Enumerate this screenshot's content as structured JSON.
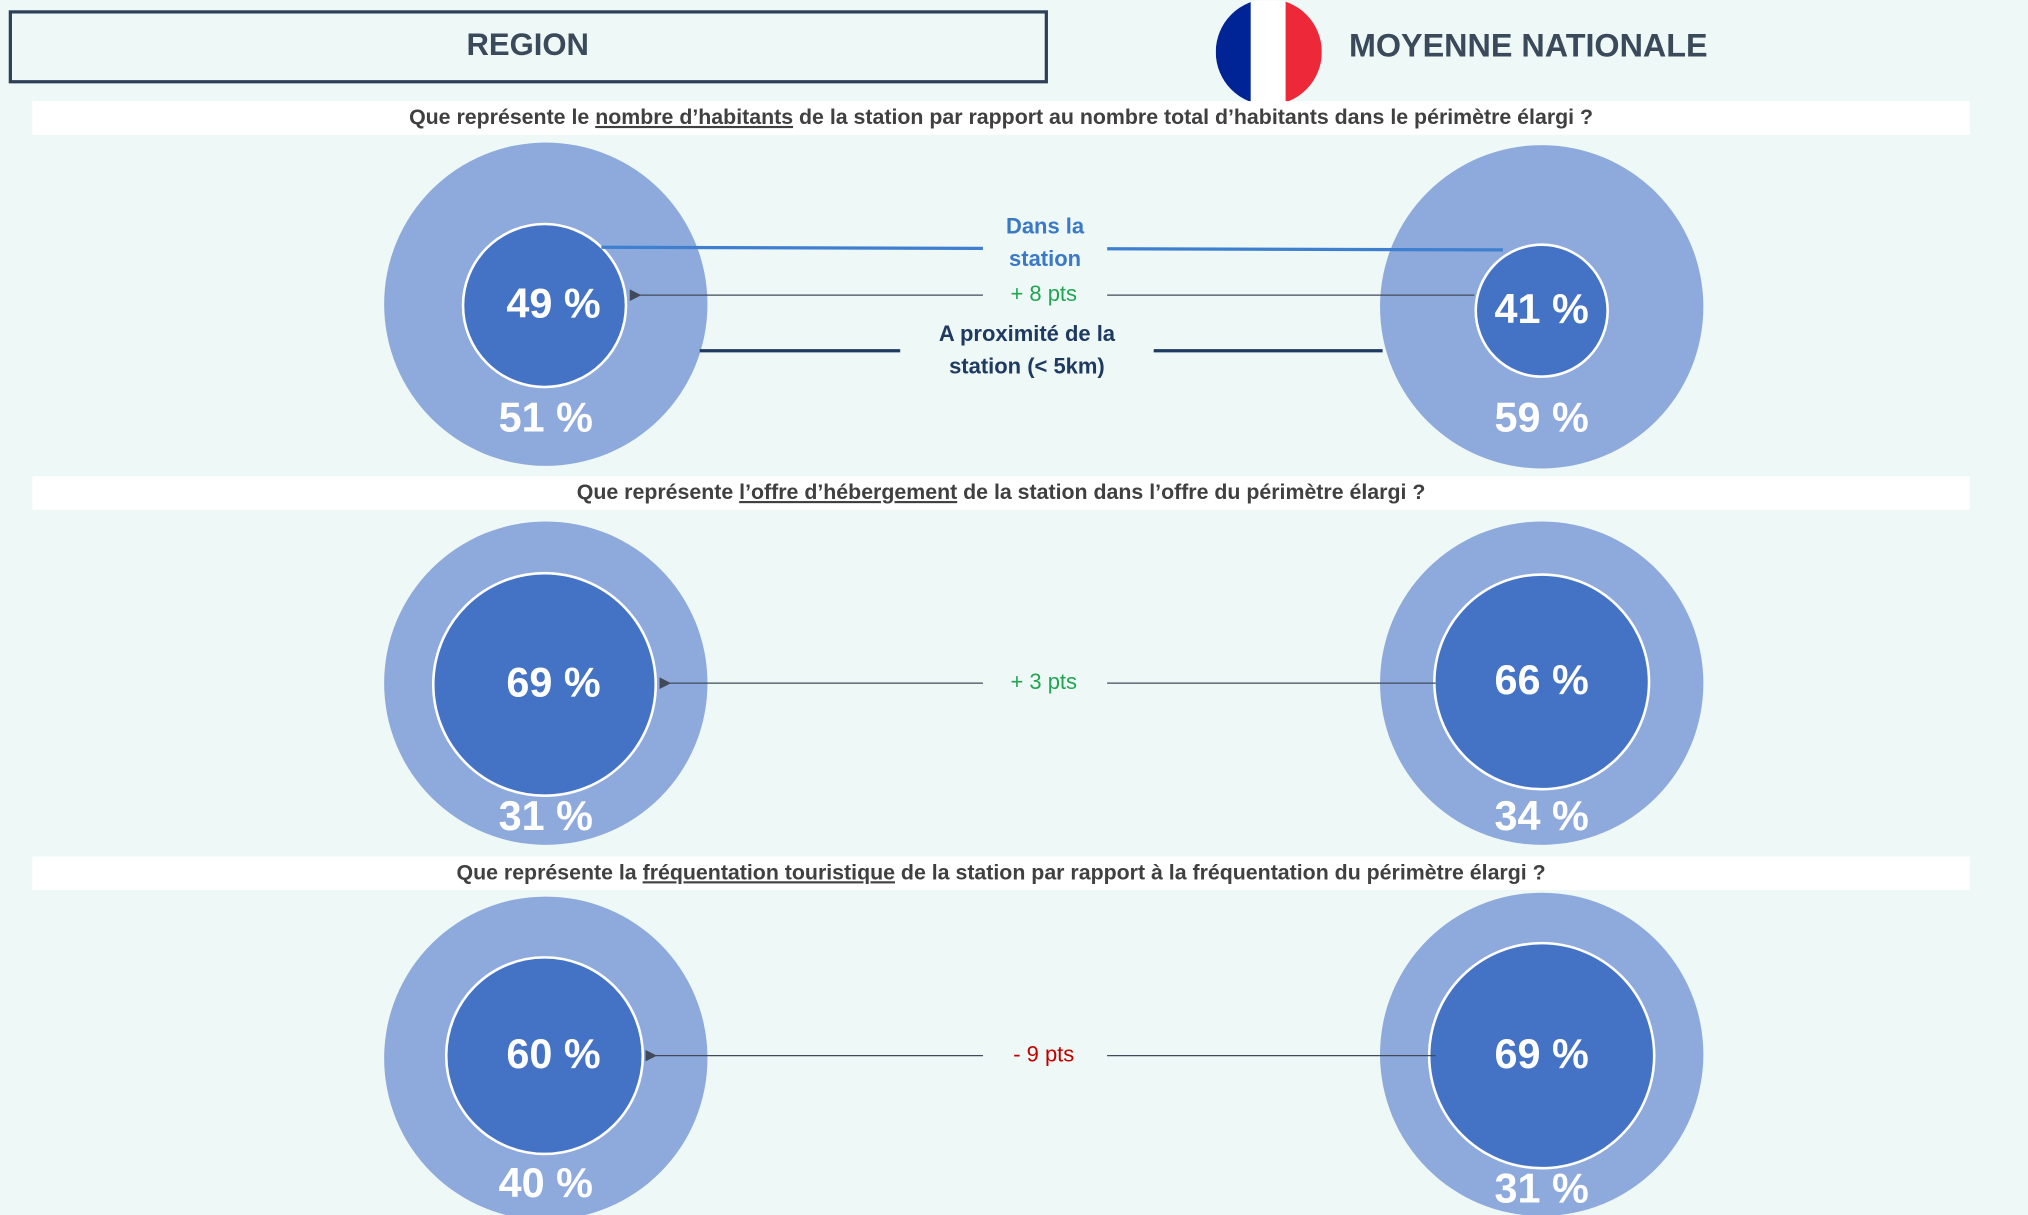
{
  "header": {
    "left": "REGION",
    "right": "MOYENNE NATIONALE"
  },
  "legend": {
    "inside": [
      "Dans la",
      "station"
    ],
    "nearby": [
      "A proximité de la",
      "station (< 5km)"
    ]
  },
  "sections": [
    {
      "question": [
        "Que représente le ",
        "nombre d’habitants",
        " de la station par rapport au nombre total d’habitants dans le périmètre élargi ?"
      ],
      "region": {
        "inner": "49 %",
        "outer": "51 %"
      },
      "national": {
        "inner": "41 %",
        "outer": "59 %"
      },
      "difference": "+ 8 pts"
    },
    {
      "question": [
        "Que représente ",
        "l’offre d’hébergement",
        " de la station dans l’offre du périmètre élargi ?"
      ],
      "region": {
        "inner": "69 %",
        "outer": "31 %"
      },
      "national": {
        "inner": "66 %",
        "outer": "34 %"
      },
      "difference": "+ 3 pts"
    },
    {
      "question": [
        "Que représente la ",
        "fréquentation touristique",
        " de la station par rapport à la fréquentation du périmètre élargi ?"
      ],
      "region": {
        "inner": "60 %",
        "outer": "40 %"
      },
      "national": {
        "inner": "69 %",
        "outer": "31 %"
      },
      "difference": "- 9 pts"
    }
  ]
}
